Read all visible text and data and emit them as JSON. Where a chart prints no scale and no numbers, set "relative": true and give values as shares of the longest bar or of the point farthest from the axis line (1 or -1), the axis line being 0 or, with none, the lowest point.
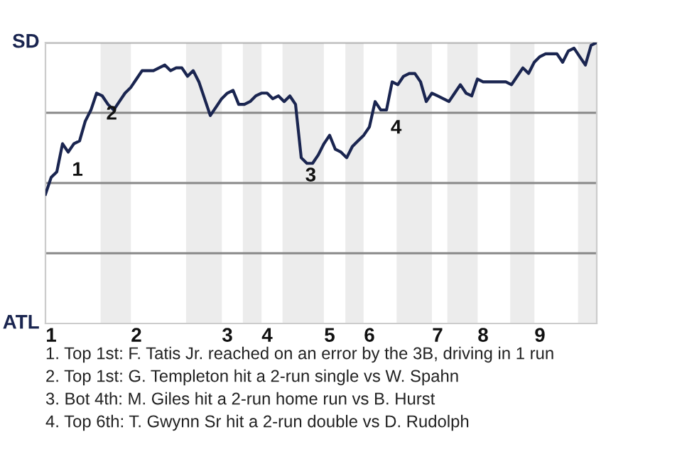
{
  "chart_data": {
    "type": "line",
    "relative": true,
    "categories": [
      null,
      "1",
      null,
      null,
      null,
      null,
      null,
      null,
      null,
      null,
      null,
      null,
      null,
      null,
      null,
      null,
      "2",
      null,
      null,
      null,
      null,
      null,
      null,
      null,
      null,
      null,
      null,
      null,
      null,
      null,
      null,
      null,
      "3",
      null,
      null,
      null,
      null,
      null,
      null,
      "4",
      null,
      null,
      null,
      null,
      null,
      null,
      null,
      null,
      null,
      null,
      "5",
      null,
      null,
      null,
      null,
      null,
      null,
      "6",
      null,
      null,
      null,
      null,
      null,
      null,
      null,
      null,
      null,
      null,
      null,
      "7",
      null,
      null,
      null,
      null,
      null,
      null,
      null,
      "8",
      null,
      null,
      null,
      null,
      null,
      null,
      null,
      null,
      null,
      "9",
      null,
      null,
      null,
      null,
      null,
      null,
      null,
      null,
      null,
      null
    ],
    "marker": "none",
    "line_style": "solid",
    "series": [
      {
        "color": "#1a2550",
        "values": [
          0.46,
          0.52,
          0.54,
          0.64,
          0.61,
          0.64,
          0.65,
          0.72,
          0.76,
          0.82,
          0.81,
          0.78,
          0.76,
          0.79,
          0.82,
          0.84,
          0.87,
          0.9,
          0.9,
          0.9,
          0.91,
          0.92,
          0.9,
          0.91,
          0.91,
          0.88,
          0.9,
          0.86,
          0.8,
          0.74,
          0.77,
          0.8,
          0.82,
          0.83,
          0.78,
          0.78,
          0.79,
          0.81,
          0.82,
          0.82,
          0.8,
          0.81,
          0.79,
          0.81,
          0.78,
          0.59,
          0.57,
          0.57,
          0.6,
          0.64,
          0.67,
          0.62,
          0.61,
          0.59,
          0.63,
          0.65,
          0.67,
          0.7,
          0.79,
          0.76,
          0.76,
          0.86,
          0.85,
          0.88,
          0.89,
          0.89,
          0.86,
          0.79,
          0.82,
          0.81,
          0.8,
          0.79,
          0.82,
          0.85,
          0.82,
          0.81,
          0.87,
          0.86,
          0.86,
          0.86,
          0.86,
          0.86,
          0.85,
          0.88,
          0.91,
          0.89,
          0.93,
          0.95,
          0.96,
          0.96,
          0.96,
          0.93,
          0.97,
          0.98,
          0.95,
          0.92,
          0.99,
          1
        ]
      }
    ],
    "ref_lines": [
      {
        "axis": "y",
        "value": 0.25,
        "color": "#888888"
      },
      {
        "axis": "y",
        "value": 0.5,
        "color": "#888888"
      },
      {
        "axis": "y",
        "value": 0.75,
        "color": "#888888"
      },
      {
        "axis": "y",
        "value": 1,
        "color": "#888888"
      }
    ],
    "annotations": [
      "SD",
      "ATL",
      {
        "text": "1",
        "y": 0.61
      },
      {
        "text": "2",
        "y": 0.81
      },
      {
        "text": "3",
        "y": 0.59
      },
      {
        "text": "4",
        "y": 0.76
      },
      "1. Top 1st: F. Tatis Jr. reached on an error by the 3B, driving in 1 run",
      "2. Top 1st: G. Templeton hit a 2-run single vs W. Spahn",
      "3. Bot 4th: M. Giles hit a 2-run home run vs B. Hurst",
      "4. Top 6th: T. Gwynn Sr hit a 2-run double vs D. Rudolph"
    ]
  }
}
